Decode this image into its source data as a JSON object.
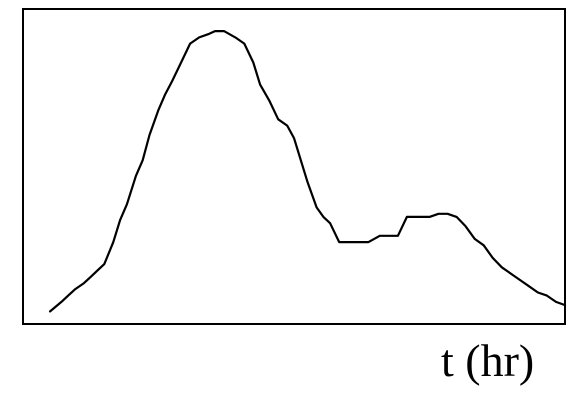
{
  "chart_data": {
    "type": "line",
    "xlabel": "t (hr)",
    "ylabel": "",
    "grid": false,
    "legend": "none",
    "color": "#000000",
    "xlim": [
      0,
      24
    ],
    "ylim": [
      0,
      10
    ],
    "series": [
      {
        "x": [
          1.2,
          1.7,
          2.0,
          2.3,
          2.7,
          3.0,
          3.3,
          3.6,
          4.0,
          4.3,
          4.6,
          5.0,
          5.3,
          5.6,
          6.0,
          6.3,
          6.6,
          7.0,
          7.4,
          7.8,
          8.2,
          8.5,
          8.9,
          9.4,
          9.8,
          10.2,
          10.5,
          10.9,
          11.3,
          11.7,
          12.0,
          12.3,
          12.6,
          13.0,
          13.3,
          13.6,
          14.0,
          14.4,
          14.8,
          15.3,
          15.8,
          16.2,
          16.6,
          17.0,
          17.4,
          18.0,
          18.4,
          18.8,
          19.2,
          19.6,
          20.0,
          20.4,
          20.8,
          21.2,
          21.6,
          22.0,
          22.4,
          22.8,
          23.2,
          23.6,
          24.0
        ],
        "y": [
          0.4,
          0.7,
          0.9,
          1.1,
          1.3,
          1.5,
          1.7,
          1.9,
          2.6,
          3.3,
          3.8,
          4.7,
          5.2,
          6.0,
          6.8,
          7.3,
          7.7,
          8.3,
          8.9,
          9.1,
          9.2,
          9.3,
          9.3,
          9.1,
          8.9,
          8.3,
          7.6,
          7.1,
          6.5,
          6.3,
          5.9,
          5.2,
          4.5,
          3.7,
          3.4,
          3.2,
          2.6,
          2.6,
          2.6,
          2.6,
          2.8,
          2.8,
          2.8,
          3.4,
          3.4,
          3.4,
          3.5,
          3.5,
          3.4,
          3.1,
          2.7,
          2.5,
          2.1,
          1.8,
          1.6,
          1.4,
          1.2,
          1.0,
          0.9,
          0.7,
          0.6
        ]
      }
    ]
  }
}
